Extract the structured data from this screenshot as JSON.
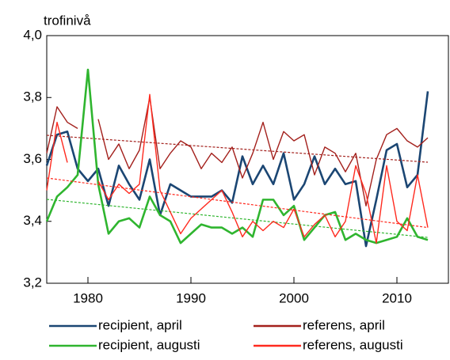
{
  "chart_data": {
    "type": "line",
    "y_label": "trofinivå",
    "x": [
      1976,
      1977,
      1978,
      1979,
      1980,
      1981,
      1982,
      1983,
      1984,
      1985,
      1986,
      1987,
      1988,
      1989,
      1990,
      1991,
      1992,
      1993,
      1994,
      1995,
      1996,
      1997,
      1998,
      1999,
      2000,
      2001,
      2002,
      2003,
      2004,
      2005,
      2006,
      2007,
      2008,
      2009,
      2010,
      2011,
      2012,
      2013
    ],
    "xlim": [
      1976,
      2015
    ],
    "xticks": [
      1980,
      1990,
      2000,
      2010
    ],
    "ylim": [
      3.2,
      4.0
    ],
    "yticks": [
      {
        "value": 3.2,
        "label": "3,2"
      },
      {
        "value": 3.4,
        "label": "3,4"
      },
      {
        "value": 3.6,
        "label": "3,6"
      },
      {
        "value": 3.8,
        "label": "3,8"
      },
      {
        "value": 4.0,
        "label": "4,0"
      }
    ],
    "trend_x": [
      1976,
      2013
    ],
    "series": [
      {
        "name": "recipient, april",
        "color": "#1b4673",
        "values": [
          3.58,
          3.68,
          3.69,
          3.57,
          3.53,
          3.57,
          3.45,
          3.58,
          3.52,
          3.47,
          3.6,
          3.42,
          3.52,
          3.5,
          3.48,
          3.48,
          3.48,
          3.5,
          3.46,
          3.61,
          3.52,
          3.58,
          3.52,
          3.62,
          3.47,
          3.52,
          3.61,
          3.52,
          3.57,
          3.52,
          3.53,
          3.32,
          3.47,
          3.63,
          3.65,
          3.51,
          3.55,
          3.82
        ]
      },
      {
        "name": "referens, april",
        "color": "#a3201c",
        "values": [
          3.62,
          3.77,
          3.72,
          3.7,
          null,
          3.73,
          3.6,
          3.65,
          3.57,
          3.63,
          3.8,
          3.57,
          3.62,
          3.66,
          3.64,
          3.57,
          3.62,
          3.59,
          3.64,
          3.54,
          3.62,
          3.72,
          3.6,
          3.69,
          3.66,
          3.68,
          3.55,
          3.64,
          3.62,
          3.56,
          3.62,
          3.45,
          3.6,
          3.68,
          3.7,
          3.66,
          3.64,
          3.67
        ],
        "trend": [
          3.678,
          3.591
        ]
      },
      {
        "name": "recipient, augusti",
        "color": "#2fb52f",
        "values": [
          3.4,
          3.48,
          3.51,
          3.55,
          3.89,
          3.52,
          3.36,
          3.4,
          3.41,
          3.38,
          3.48,
          3.42,
          3.4,
          3.33,
          3.36,
          3.39,
          3.38,
          3.38,
          3.36,
          3.38,
          3.35,
          3.47,
          3.47,
          3.42,
          3.45,
          3.34,
          3.38,
          3.42,
          3.43,
          3.34,
          3.36,
          3.34,
          3.33,
          3.34,
          3.35,
          3.41,
          3.35,
          3.34
        ],
        "trend": [
          3.471,
          3.348
        ]
      },
      {
        "name": "referens, augusti",
        "color": "#ff2a1f",
        "values": [
          3.5,
          3.72,
          3.59,
          null,
          null,
          3.53,
          3.47,
          3.52,
          3.49,
          3.52,
          3.81,
          3.5,
          3.43,
          3.36,
          3.41,
          3.44,
          3.47,
          3.5,
          3.43,
          3.35,
          3.4,
          3.37,
          3.4,
          3.38,
          3.44,
          3.35,
          3.39,
          3.42,
          3.35,
          3.4,
          3.58,
          3.49,
          3.33,
          3.58,
          3.4,
          3.37,
          3.55,
          3.38
        ],
        "trend": [
          3.54,
          3.38
        ]
      }
    ]
  }
}
